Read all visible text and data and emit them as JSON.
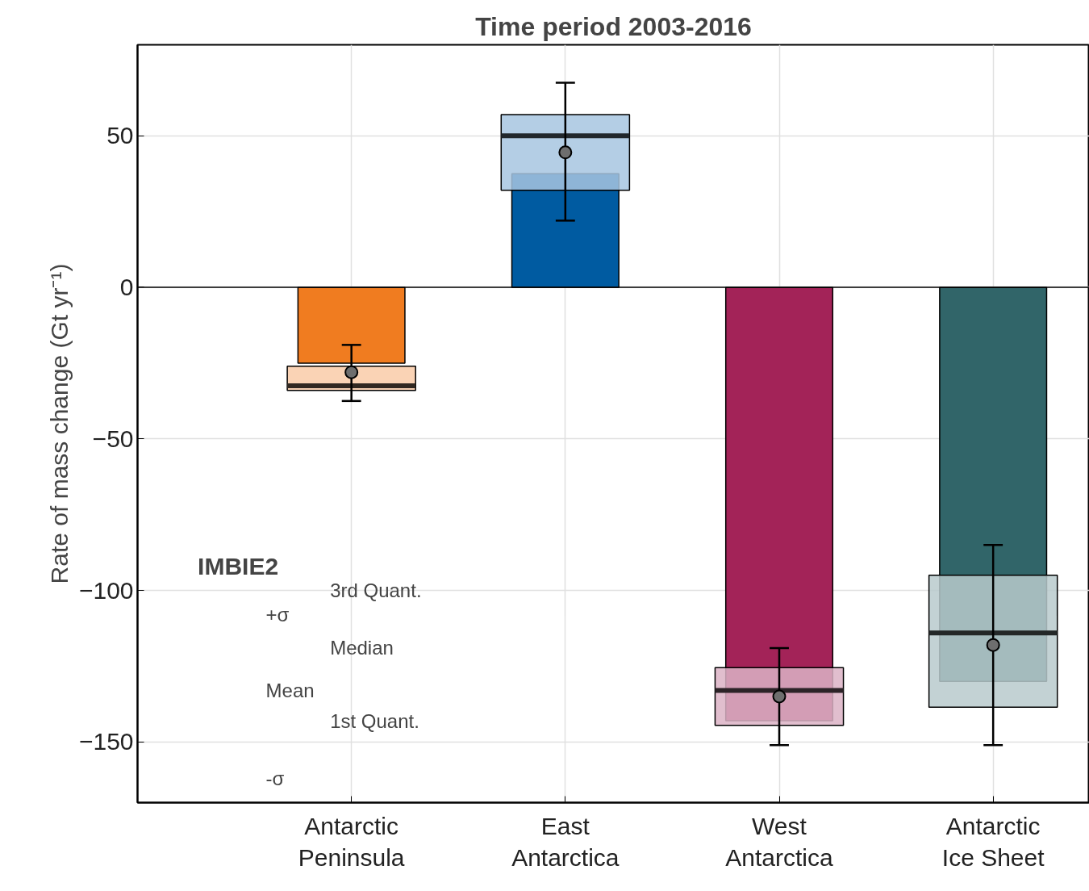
{
  "chart_data": {
    "type": "bar",
    "title": "Time period 2003-2016",
    "ylabel": "Rate of mass change (Gt yr⁻¹)",
    "categories": [
      "Antarctic\nPeninsula",
      "East\nAntarctica",
      "West\nAntarctica",
      "Antarctic\nIce Sheet"
    ],
    "series": [
      {
        "colors": [
          "#f07c20",
          "#005ba1",
          "#a32358",
          "#316569"
        ],
        "values": [
          -25,
          37.5,
          -143,
          -130
        ]
      },
      {
        "type": "box",
        "colors": [
          "#f9cba8",
          "#a7c6e0",
          "#dcb3c6",
          "#b8cacc"
        ],
        "boxes": [
          {
            "low": -37.5,
            "q1": -34,
            "median": -32.5,
            "q3": -26,
            "high": -19,
            "mean": -28
          },
          {
            "low": 22,
            "q1": 32,
            "median": 50,
            "q3": 57,
            "high": 67.5,
            "mean": 44.5
          },
          {
            "low": -151,
            "q1": -144.5,
            "median": -133,
            "q3": -125.5,
            "high": -119,
            "mean": -135
          },
          {
            "low": -151,
            "q1": -138.5,
            "median": -114,
            "q3": -95,
            "high": -85,
            "mean": -118
          }
        ]
      }
    ],
    "ylim": [
      -170,
      80
    ],
    "yticks": [
      -150,
      -100,
      -50,
      0,
      50
    ],
    "grid": true,
    "ref_lines": [
      {
        "axis": "y",
        "value": 0,
        "color": "#000000"
      }
    ],
    "legend_title": "IMBIE2",
    "annotations": [
      "3rd Quant.",
      "Median",
      "Mean",
      "1st Quant.",
      "+σ",
      "-σ"
    ]
  }
}
